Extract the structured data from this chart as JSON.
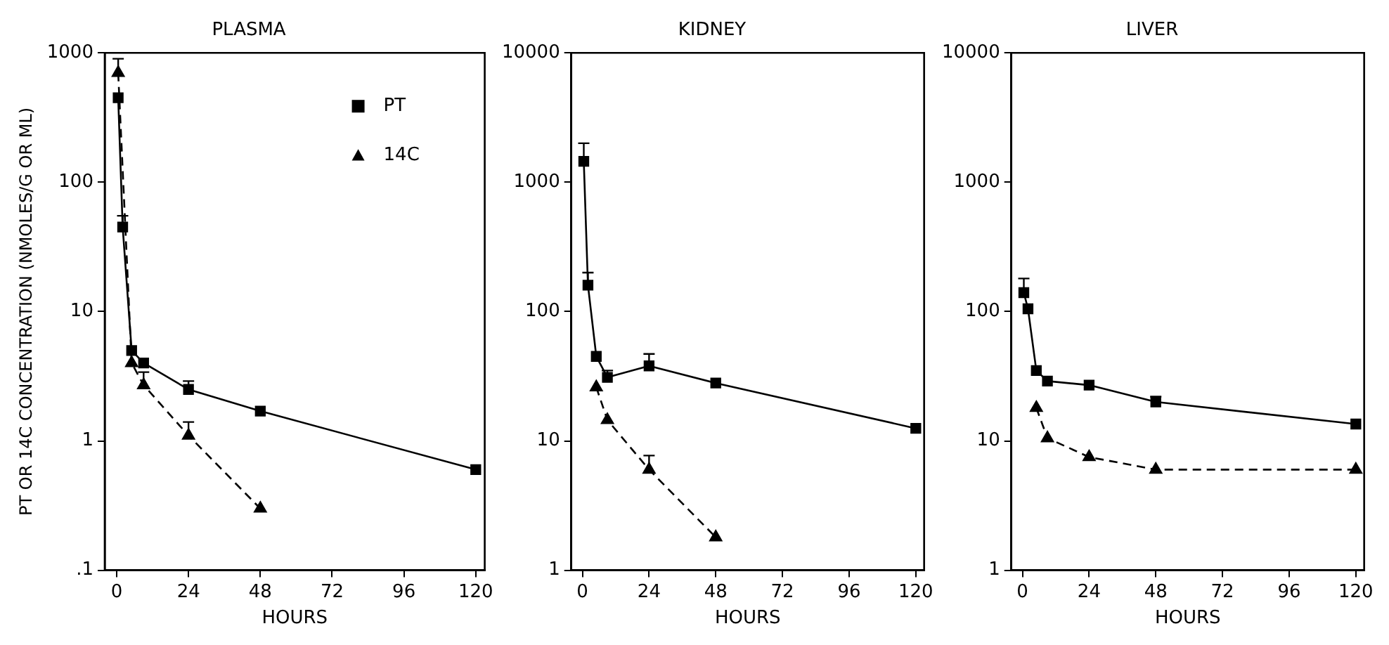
{
  "chart_data": [
    {
      "type": "line",
      "title": "PLASMA",
      "xlabel": "HOURS",
      "ylabel": "PT OR 14C CONCENTRATION (NMOLES/G OR ML)",
      "log": "y",
      "grid": false,
      "legend": "top right",
      "xlim": [
        -4,
        123
      ],
      "xticks": [
        0,
        24,
        48,
        72,
        96,
        120
      ],
      "ylim": [
        0.1,
        1000
      ],
      "yticks": [
        {
          "value": 0.1,
          "label": ".1"
        },
        1,
        10,
        100,
        1000
      ],
      "series": [
        {
          "name": "PT",
          "color": "#000000",
          "marker": "square",
          "line_style": "solid",
          "x": [
            0.5,
            2,
            5,
            9,
            24,
            48,
            120
          ],
          "values": [
            450,
            45,
            5,
            4,
            2.5,
            1.7,
            0.6
          ],
          "errors": [
            null,
            [
              45,
              55
            ],
            null,
            null,
            [
              2.5,
              2.9
            ],
            null,
            null
          ]
        },
        {
          "name": "14C",
          "color": "#000000",
          "marker": "triangle",
          "line_style": "dashed",
          "x": [
            0.5,
            5,
            9,
            24,
            48
          ],
          "values": [
            700,
            4,
            2.7,
            1.1,
            0.3
          ],
          "errors": [
            [
              700,
              900
            ],
            null,
            [
              2.7,
              3.4
            ],
            [
              1.1,
              1.4
            ],
            null
          ]
        }
      ]
    },
    {
      "type": "line",
      "title": "KIDNEY",
      "xlabel": "HOURS",
      "log": "y",
      "grid": false,
      "legend": false,
      "xlim": [
        -4,
        123
      ],
      "xticks": [
        0,
        24,
        48,
        72,
        96,
        120
      ],
      "ylim": [
        1,
        10000
      ],
      "yticks": [
        1,
        10,
        100,
        1000,
        10000
      ],
      "series": [
        {
          "color": "#000000",
          "marker": "square",
          "line_style": "solid",
          "x": [
            0.5,
            2,
            5,
            9,
            24,
            48,
            120
          ],
          "values": [
            1450,
            160,
            45,
            31,
            38,
            28,
            12.5
          ],
          "errors": [
            [
              1450,
              2000
            ],
            [
              160,
              200
            ],
            null,
            [
              31,
              35
            ],
            [
              38,
              47
            ],
            null,
            null
          ]
        },
        {
          "color": "#000000",
          "marker": "triangle",
          "line_style": "dashed",
          "x": [
            5,
            9,
            24,
            48
          ],
          "values": [
            26,
            14.5,
            6,
            1.8
          ],
          "errors": [
            null,
            null,
            [
              6,
              7.7
            ],
            null
          ]
        }
      ]
    },
    {
      "type": "line",
      "title": "LIVER",
      "xlabel": "HOURS",
      "log": "y",
      "grid": false,
      "legend": false,
      "xlim": [
        -4,
        123
      ],
      "xticks": [
        0,
        24,
        48,
        72,
        96,
        120
      ],
      "ylim": [
        1,
        10000
      ],
      "yticks": [
        1,
        10,
        100,
        1000,
        10000
      ],
      "series": [
        {
          "color": "#000000",
          "marker": "square",
          "line_style": "solid",
          "x": [
            0.5,
            2,
            5,
            9,
            24,
            48,
            120
          ],
          "values": [
            140,
            105,
            35,
            29,
            27,
            20,
            13.5
          ],
          "errors": [
            [
              140,
              180
            ],
            null,
            null,
            null,
            null,
            [
              20,
              22
            ],
            null
          ]
        },
        {
          "color": "#000000",
          "marker": "triangle",
          "line_style": "dashed",
          "x": [
            5,
            9,
            24,
            48,
            120
          ],
          "values": [
            18,
            10.5,
            7.5,
            6,
            6
          ],
          "errors": [
            null,
            null,
            null,
            null,
            null
          ]
        }
      ]
    }
  ]
}
